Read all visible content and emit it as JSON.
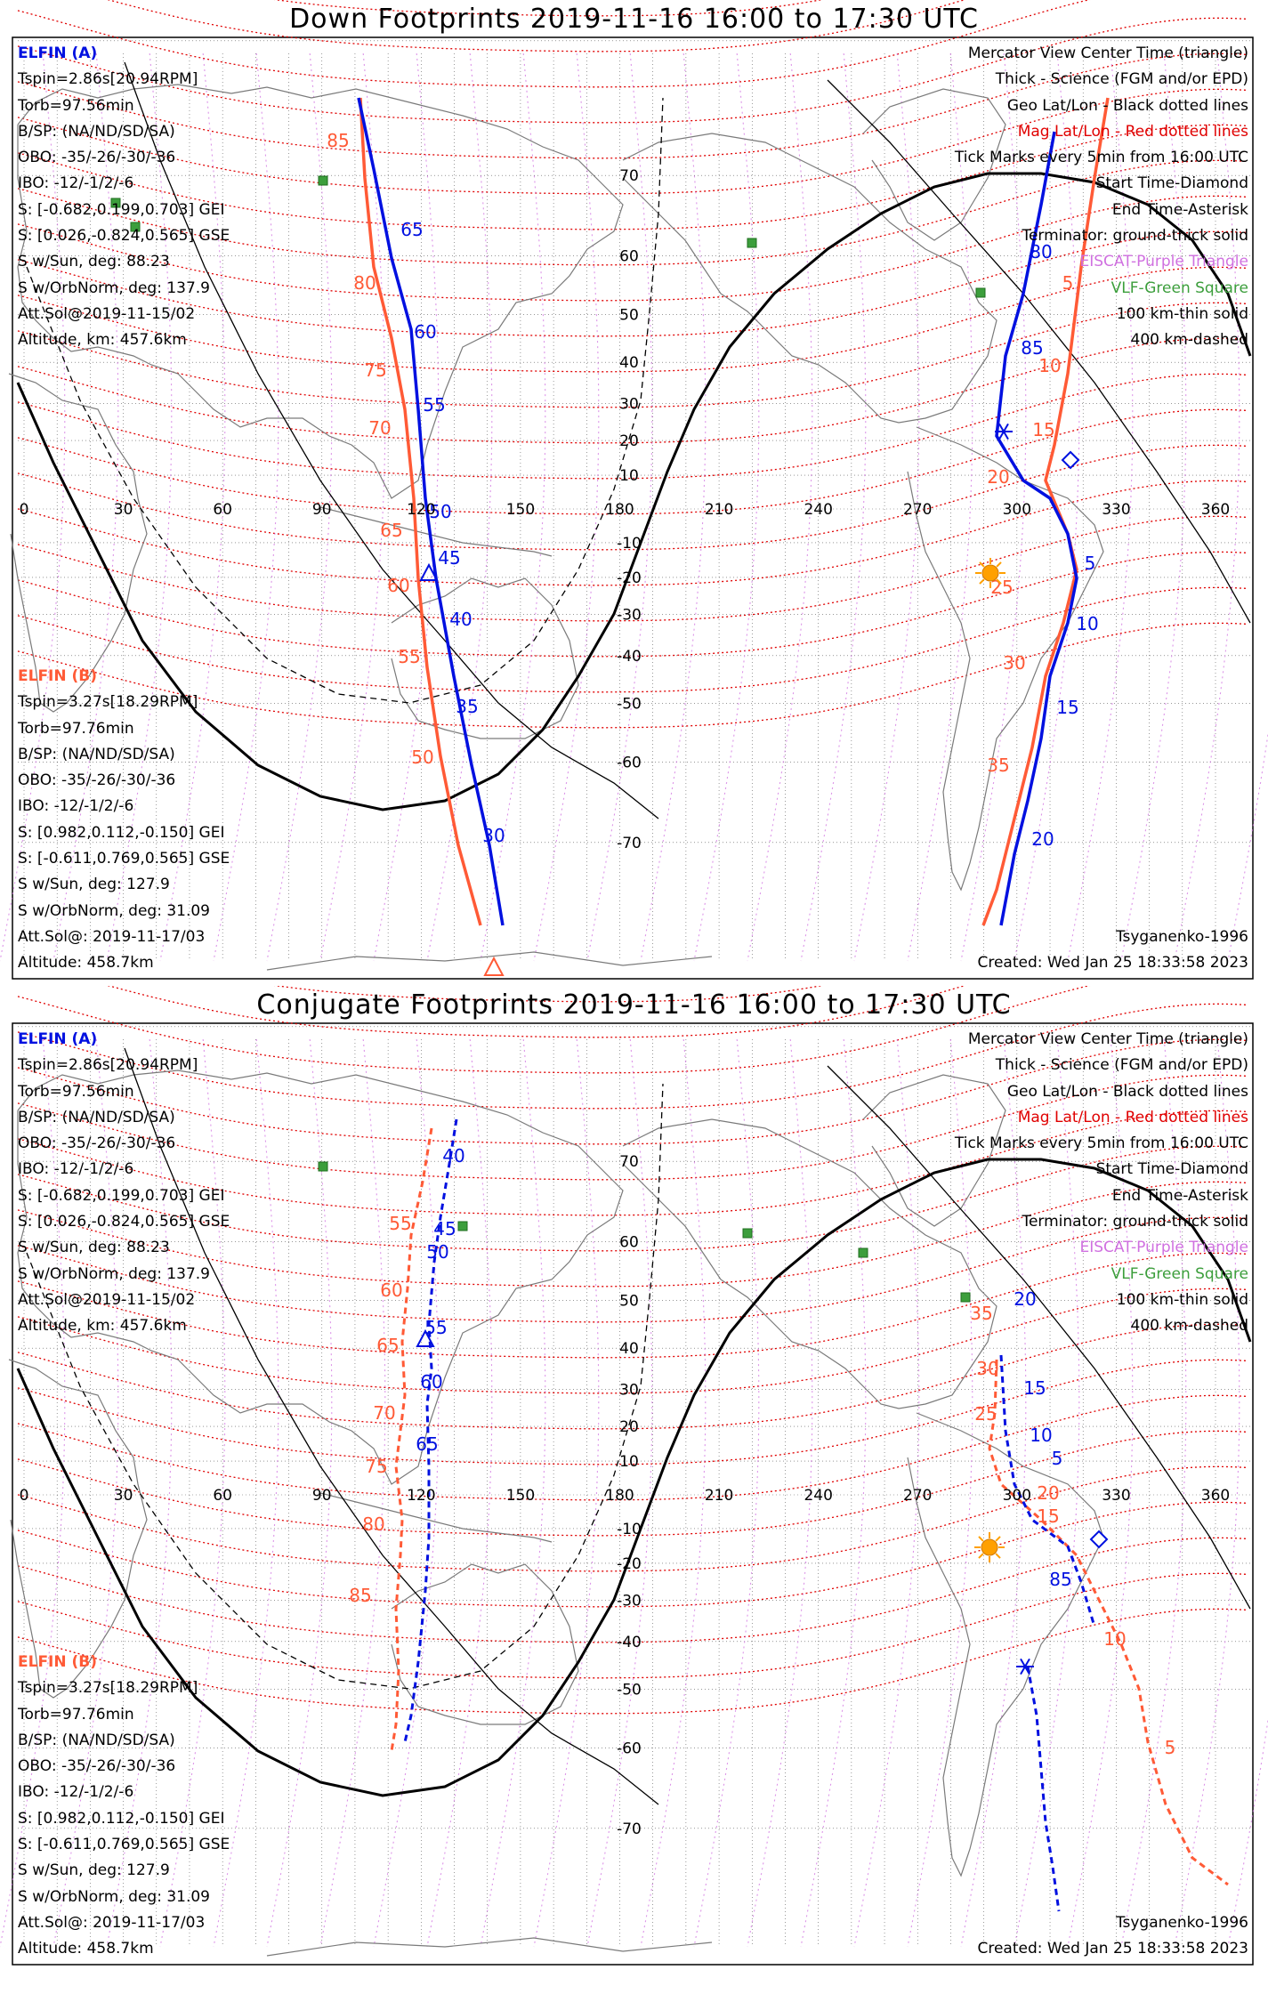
{
  "colors": {
    "elfin_a": "#0010e0",
    "elfin_b": "#ff5a36",
    "mag_grid": "#e00000",
    "geo_grid": "#000000",
    "eiscat": "#d070e0",
    "vlf": "#3c9e3c",
    "sun": "#ffa000"
  },
  "panels": [
    {
      "title": "Down Footprints 2019-11-16 16:00 to 17:30 UTC",
      "elfin_a": {
        "name": "ELFIN (A)",
        "lines": [
          "Tspin=2.86s[20.94RPM]",
          "Torb=97.56min",
          "B/SP: (NA/ND/SD/SA)",
          "OBO: -35/-26/-30/-36",
          "IBO: -12/-1/2/-6",
          "S: [-0.682,0.199,0.703] GEI",
          "S: [0.026,-0.824,0.565] GSE",
          "S w/Sun, deg: 88.23",
          "S w/OrbNorm, deg: 137.9",
          "Att.Sol@2019-11-15/02",
          "Altitude, km: 457.6km"
        ]
      },
      "elfin_b": {
        "name": "ELFIN (B)",
        "lines": [
          "Tspin=3.27s[18.29RPM]",
          "Torb=97.76min",
          "B/SP: (NA/ND/SD/SA)",
          "OBO: -35/-26/-30/-36",
          "IBO: -12/-1/2/-6",
          "S: [0.982,0.112,-0.150] GEI",
          "S: [-0.611,0.769,0.565] GSE",
          "S w/Sun, deg: 127.9",
          "S w/OrbNorm, deg: 31.09",
          "Att.Sol@: 2019-11-17/03",
          "Altitude: 458.7km"
        ]
      },
      "legend": [
        "Mercator View Center Time (triangle)",
        "Thick - Science (FGM and/or EPD)",
        "Geo Lat/Lon - Black dotted lines",
        "Mag Lat/Lon - Red dotted lines",
        "Tick Marks every 5min from 16:00 UTC",
        "Start Time-Diamond",
        "End Time-Asterisk",
        "Terminator: ground-thick solid",
        "EISCAT-Purple Triangle",
        "VLF-Green Square",
        "100 km-thin solid",
        "400 km-dashed"
      ],
      "model": "Tsyganenko-1996",
      "created": "Created: Wed Jan 25 18:33:58 2023",
      "track_a_labels": [
        "65",
        "60",
        "55",
        "50",
        "45",
        "40",
        "35",
        "30",
        "80",
        "85",
        "5",
        "10",
        "15",
        "20"
      ],
      "track_b_labels": [
        "85",
        "80",
        "75",
        "70",
        "65",
        "60",
        "55",
        "50",
        "5",
        "10",
        "15",
        "20",
        "25",
        "30",
        "35"
      ]
    },
    {
      "title": "Conjugate Footprints 2019-11-16 16:00 to 17:30 UTC",
      "elfin_a": {
        "name": "ELFIN (A)",
        "lines": [
          "Tspin=2.86s[20.94RPM]",
          "Torb=97.56min",
          "B/SP: (NA/ND/SD/SA)",
          "OBO: -35/-26/-30/-36",
          "IBO: -12/-1/2/-6",
          "S: [-0.682,0.199,0.703] GEI",
          "S: [0.026,-0.824,0.565] GSE",
          "S w/Sun, deg: 88.23",
          "S w/OrbNorm, deg: 137.9",
          "Att.Sol@2019-11-15/02",
          "Altitude, km: 457.6km"
        ]
      },
      "elfin_b": {
        "name": "ELFIN (B)",
        "lines": [
          "Tspin=3.27s[18.29RPM]",
          "Torb=97.76min",
          "B/SP: (NA/ND/SD/SA)",
          "OBO: -35/-26/-30/-36",
          "IBO: -12/-1/2/-6",
          "S: [0.982,0.112,-0.150] GEI",
          "S: [-0.611,0.769,0.565] GSE",
          "S w/Sun, deg: 127.9",
          "S w/OrbNorm, deg: 31.09",
          "Att.Sol@: 2019-11-17/03",
          "Altitude: 458.7km"
        ]
      },
      "legend": [
        "Mercator View Center Time (triangle)",
        "Thick - Science (FGM and/or EPD)",
        "Geo Lat/Lon - Black dotted lines",
        "Mag Lat/Lon - Red dotted lines",
        "Tick Marks every 5min from 16:00 UTC",
        "Start Time-Diamond",
        "End Time-Asterisk",
        "Terminator: ground-thick solid",
        "EISCAT-Purple Triangle",
        "VLF-Green Square",
        "100 km-thin solid",
        "400 km-dashed"
      ],
      "model": "Tsyganenko-1996",
      "created": "Created: Wed Jan 25 18:33:58 2023",
      "track_a_labels": [
        "40",
        "45",
        "50",
        "55",
        "60",
        "65",
        "20",
        "15",
        "10",
        "5",
        "85"
      ],
      "track_b_labels": [
        "55",
        "60",
        "65",
        "70",
        "75",
        "80",
        "85",
        "35",
        "30",
        "25",
        "20",
        "15",
        "10",
        "5"
      ]
    }
  ],
  "map": {
    "lon_ticks": [
      "0",
      "30",
      "60",
      "90",
      "120",
      "150",
      "180",
      "210",
      "240",
      "270",
      "300",
      "330",
      "360"
    ],
    "lat_ticks": [
      "70",
      "60",
      "50",
      "40",
      "30",
      "20",
      "10",
      "-10",
      "-20",
      "-30",
      "-40",
      "-50",
      "-60",
      "-70"
    ]
  }
}
